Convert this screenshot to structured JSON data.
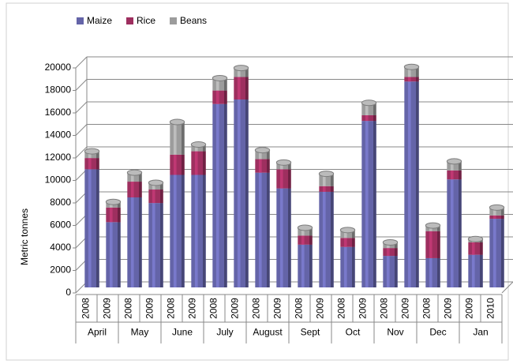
{
  "chart_data": {
    "type": "bar",
    "stacked": true,
    "y_label": "Metric tonnes",
    "groups": [
      {
        "name": "April",
        "years": [
          "2008",
          "2009"
        ]
      },
      {
        "name": "May",
        "years": [
          "2008",
          "2009"
        ]
      },
      {
        "name": "June",
        "years": [
          "2008",
          "2009"
        ]
      },
      {
        "name": "July",
        "years": [
          "2008",
          "2009"
        ]
      },
      {
        "name": "August",
        "years": [
          "2008",
          "2009"
        ]
      },
      {
        "name": "Sept",
        "years": [
          "2008",
          "2009"
        ]
      },
      {
        "name": "Oct",
        "years": [
          "2008",
          "2009"
        ]
      },
      {
        "name": "Nov",
        "years": [
          "2008",
          "2009"
        ]
      },
      {
        "name": "Dec",
        "years": [
          "2008",
          "2009"
        ]
      },
      {
        "name": "Jan",
        "years": [
          "2009",
          "2010"
        ]
      }
    ],
    "series": [
      {
        "name": "Maize",
        "color": "#6464a8",
        "values": [
          10500,
          5800,
          8000,
          7500,
          10000,
          10000,
          16300,
          16700,
          10200,
          8800,
          3800,
          8500,
          3600,
          14800,
          2800,
          18300,
          2600,
          9600,
          2900,
          6100
        ]
      },
      {
        "name": "Rice",
        "color": "#9e2f5f",
        "values": [
          1000,
          1300,
          1400,
          1200,
          1800,
          2100,
          1200,
          2000,
          1200,
          1700,
          800,
          500,
          800,
          500,
          700,
          400,
          2400,
          800,
          1100,
          300
        ]
      },
      {
        "name": "Beans",
        "color": "#9c9c9c",
        "values": [
          600,
          500,
          800,
          600,
          2900,
          600,
          1100,
          800,
          800,
          600,
          700,
          1100,
          700,
          1100,
          500,
          900,
          500,
          800,
          300,
          700
        ]
      }
    ],
    "ylim": [
      0,
      20000
    ],
    "yticks": [
      0,
      2000,
      4000,
      6000,
      8000,
      10000,
      12000,
      14000,
      16000,
      18000,
      20000
    ],
    "grid": true,
    "legend": "top"
  }
}
